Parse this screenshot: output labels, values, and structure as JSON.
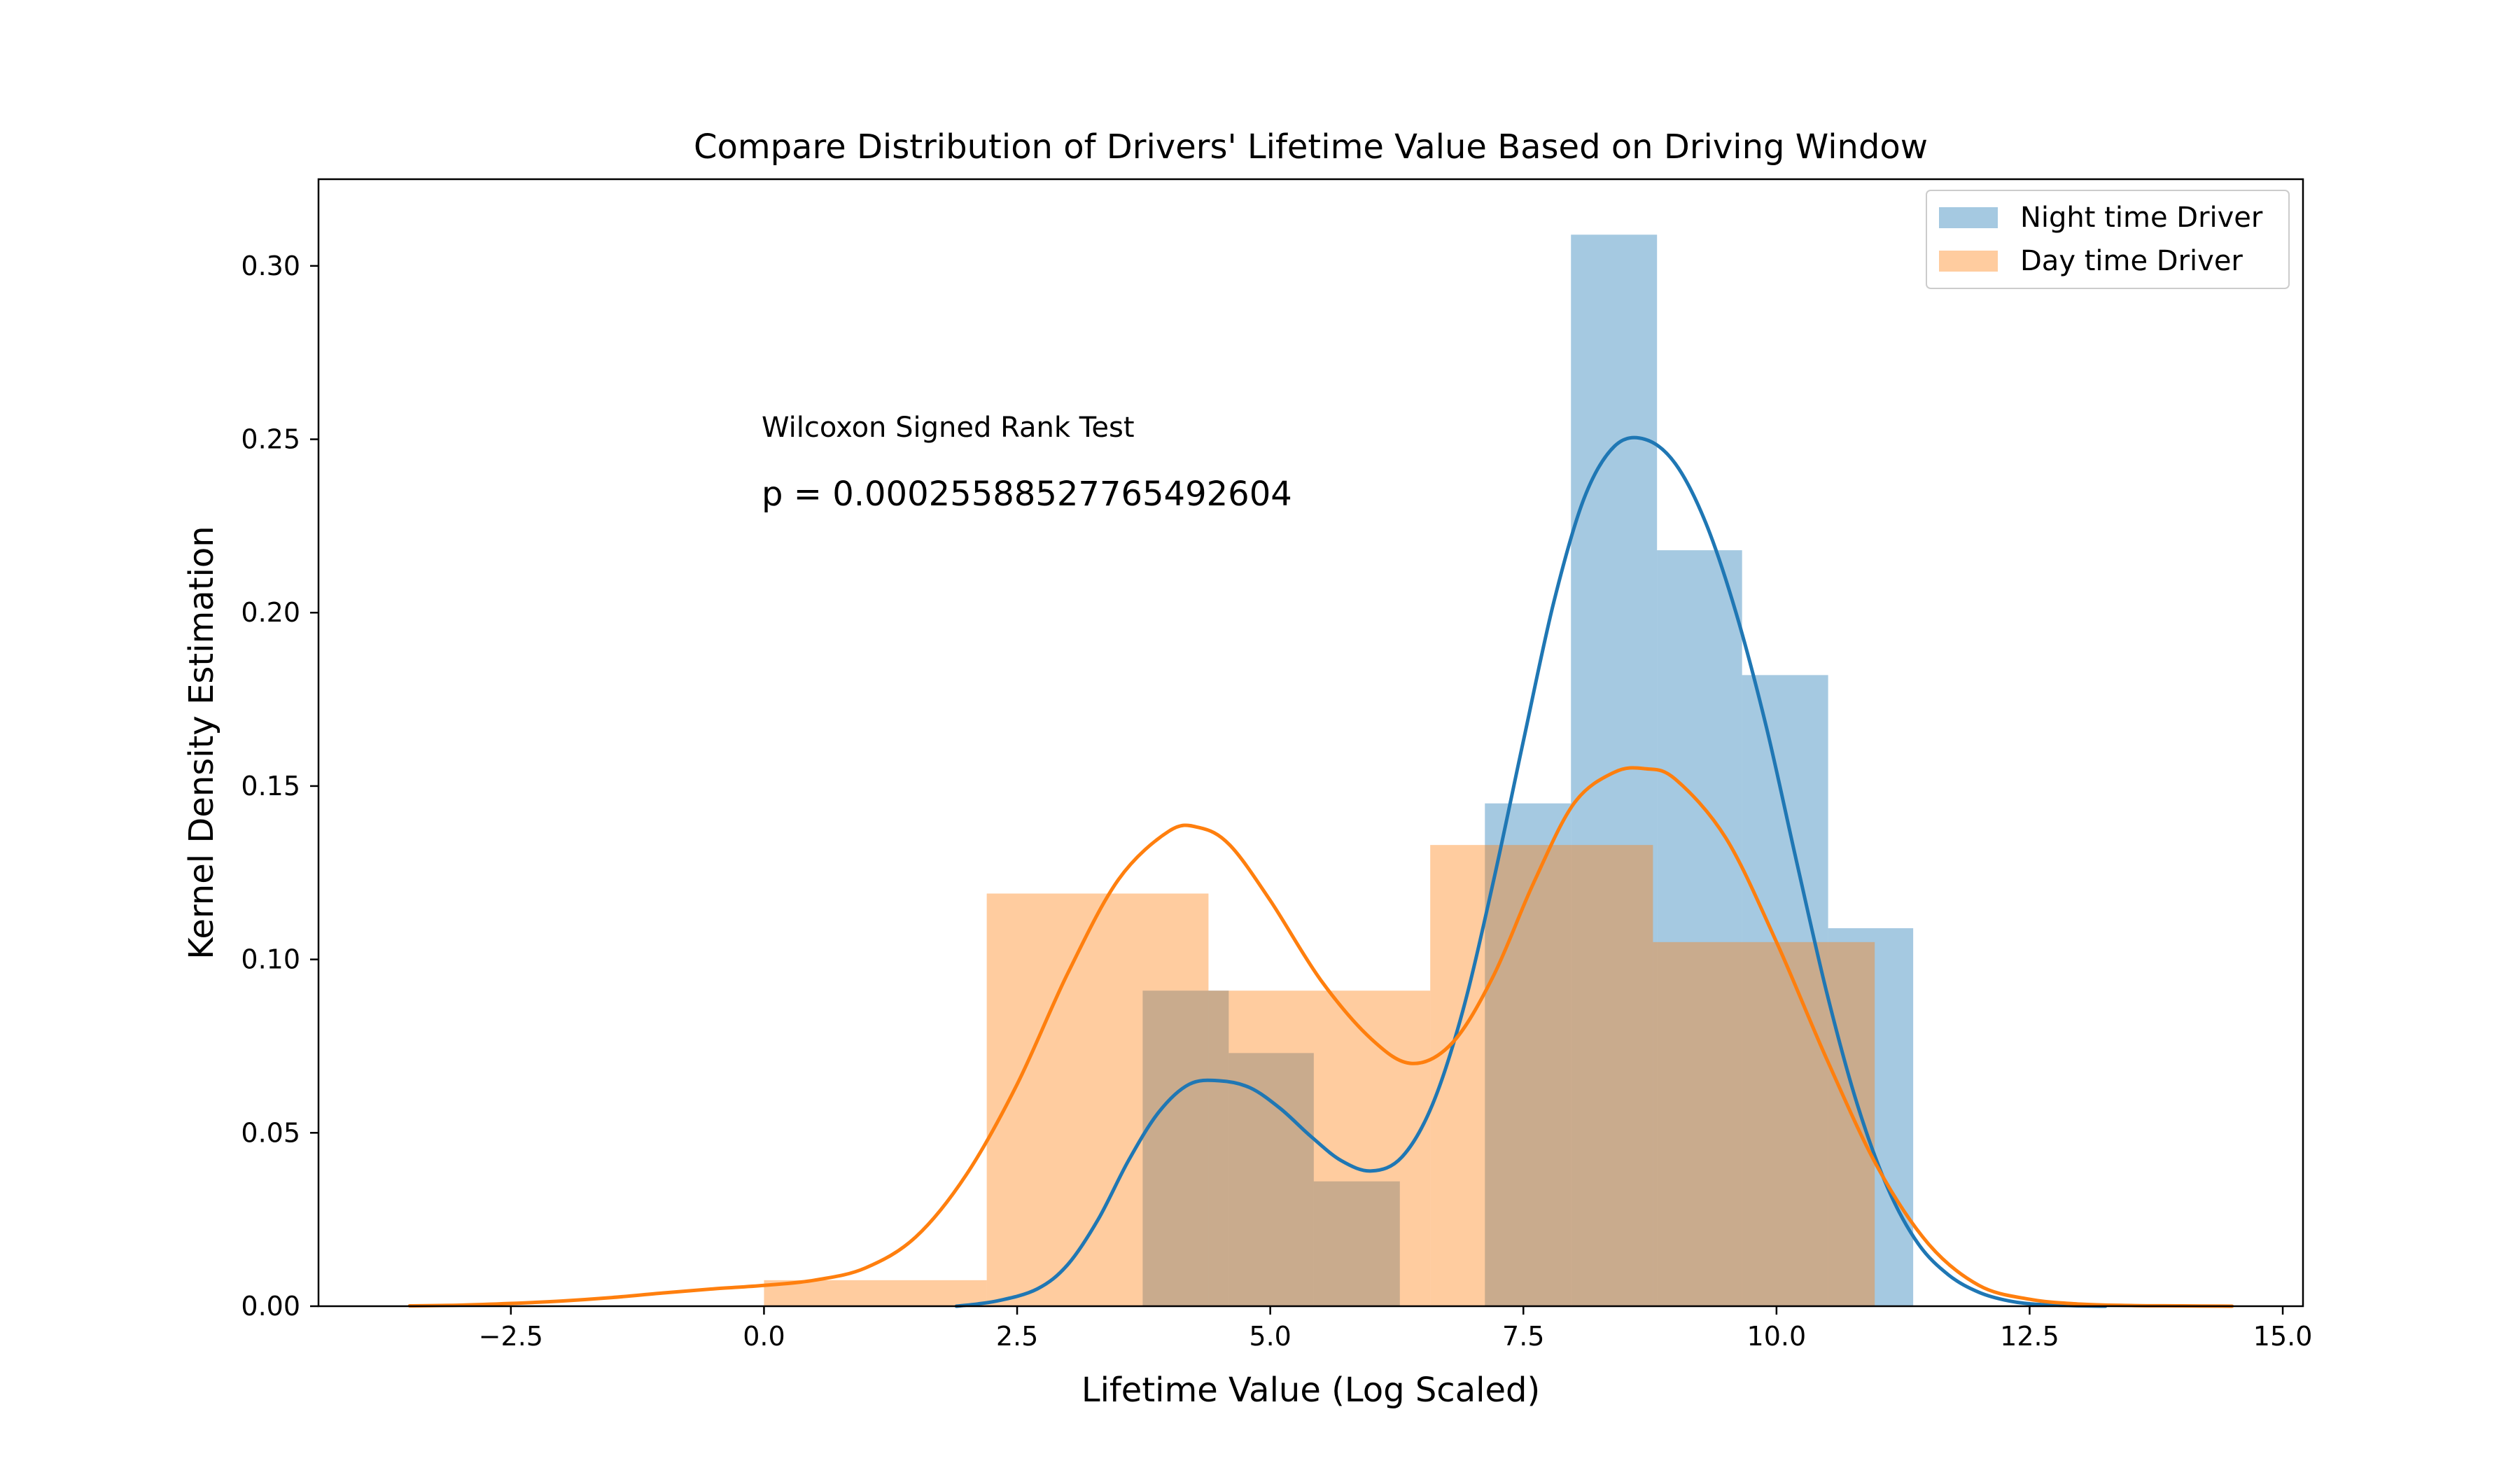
{
  "chart_data": {
    "type": "histogram_kde",
    "title": "Compare Distribution of Drivers' Lifetime Value Based on Driving Window",
    "xlabel": "Lifetime Value (Log Scaled)",
    "ylabel": "Kernel Density Estimation",
    "xlim": [
      -4.4,
      15.2
    ],
    "ylim": [
      0,
      0.325
    ],
    "xticks": [
      -2.5,
      0.0,
      2.5,
      5.0,
      7.5,
      10.0,
      12.5,
      15.0
    ],
    "xtick_labels": [
      "−2.5",
      "0.0",
      "2.5",
      "5.0",
      "7.5",
      "10.0",
      "12.5",
      "15.0"
    ],
    "yticks": [
      0.0,
      0.05,
      0.1,
      0.15,
      0.2,
      0.25,
      0.3
    ],
    "ytick_labels": [
      "0.00",
      "0.05",
      "0.10",
      "0.15",
      "0.20",
      "0.25",
      "0.30"
    ],
    "grid": false,
    "legend_position": "top-right",
    "annotations": [
      {
        "text": "Wilcoxon Signed Rank Test"
      },
      {
        "text": "p = 0.00025588527765492604"
      }
    ],
    "series": [
      {
        "name": "Night time Driver",
        "hist_color": "#1f77b4",
        "hist_opacity": 0.4,
        "kde_color": "#1f77b4",
        "bins": [
          {
            "x0": 3.74,
            "x1": 4.59,
            "density": 0.091
          },
          {
            "x0": 4.59,
            "x1": 5.43,
            "density": 0.073
          },
          {
            "x0": 5.43,
            "x1": 6.28,
            "density": 0.036
          },
          {
            "x0": 6.28,
            "x1": 7.12,
            "density": 0.0
          },
          {
            "x0": 7.12,
            "x1": 7.97,
            "density": 0.145
          },
          {
            "x0": 7.97,
            "x1": 8.82,
            "density": 0.309
          },
          {
            "x0": 8.82,
            "x1": 9.66,
            "density": 0.218
          },
          {
            "x0": 9.66,
            "x1": 10.51,
            "density": 0.182
          },
          {
            "x0": 10.51,
            "x1": 11.35,
            "density": 0.109
          }
        ],
        "kde": {
          "x": [
            1.9,
            2.3,
            2.7,
            3.0,
            3.3,
            3.6,
            3.9,
            4.2,
            4.5,
            4.8,
            5.1,
            5.4,
            5.7,
            6.0,
            6.3,
            6.6,
            6.9,
            7.2,
            7.5,
            7.8,
            8.1,
            8.4,
            8.7,
            9.0,
            9.3,
            9.6,
            9.9,
            10.2,
            10.5,
            10.8,
            11.1,
            11.4,
            11.7,
            12.0,
            12.3,
            12.6,
            13.0,
            13.25
          ],
          "y": [
            0.0,
            0.0015,
            0.005,
            0.012,
            0.025,
            0.042,
            0.056,
            0.064,
            0.065,
            0.063,
            0.057,
            0.049,
            0.042,
            0.039,
            0.043,
            0.058,
            0.085,
            0.122,
            0.163,
            0.203,
            0.233,
            0.248,
            0.25,
            0.243,
            0.226,
            0.2,
            0.167,
            0.128,
            0.09,
            0.058,
            0.034,
            0.018,
            0.009,
            0.004,
            0.0015,
            0.0005,
            0.0001,
            0.0
          ]
        }
      },
      {
        "name": "Day time Driver",
        "hist_color": "#ff7f0e",
        "hist_opacity": 0.4,
        "kde_color": "#ff7f0e",
        "bins": [
          {
            "x0": 0.0,
            "x1": 2.2,
            "density": 0.0075
          },
          {
            "x0": 2.2,
            "x1": 4.39,
            "density": 0.119
          },
          {
            "x0": 4.39,
            "x1": 6.58,
            "density": 0.091
          },
          {
            "x0": 6.58,
            "x1": 8.78,
            "density": 0.133
          },
          {
            "x0": 8.78,
            "x1": 10.97,
            "density": 0.105
          }
        ],
        "kde": {
          "x": [
            -3.5,
            -3.0,
            -2.5,
            -2.0,
            -1.5,
            -1.0,
            -0.5,
            0.0,
            0.5,
            1.0,
            1.5,
            2.0,
            2.5,
            3.0,
            3.5,
            4.0,
            4.3,
            4.6,
            5.0,
            5.5,
            6.0,
            6.4,
            6.8,
            7.2,
            7.6,
            8.0,
            8.4,
            8.7,
            9.0,
            9.5,
            10.0,
            10.5,
            11.0,
            11.5,
            12.0,
            12.5,
            13.0,
            13.5,
            14.0,
            14.5
          ],
          "y": [
            0.0001,
            0.0003,
            0.0008,
            0.0015,
            0.0025,
            0.0038,
            0.005,
            0.006,
            0.0075,
            0.011,
            0.02,
            0.038,
            0.064,
            0.096,
            0.123,
            0.137,
            0.138,
            0.133,
            0.117,
            0.094,
            0.077,
            0.07,
            0.076,
            0.095,
            0.122,
            0.145,
            0.154,
            0.155,
            0.152,
            0.135,
            0.105,
            0.071,
            0.04,
            0.018,
            0.006,
            0.002,
            0.0006,
            0.0002,
            0.0001,
            0.0
          ]
        }
      }
    ]
  }
}
